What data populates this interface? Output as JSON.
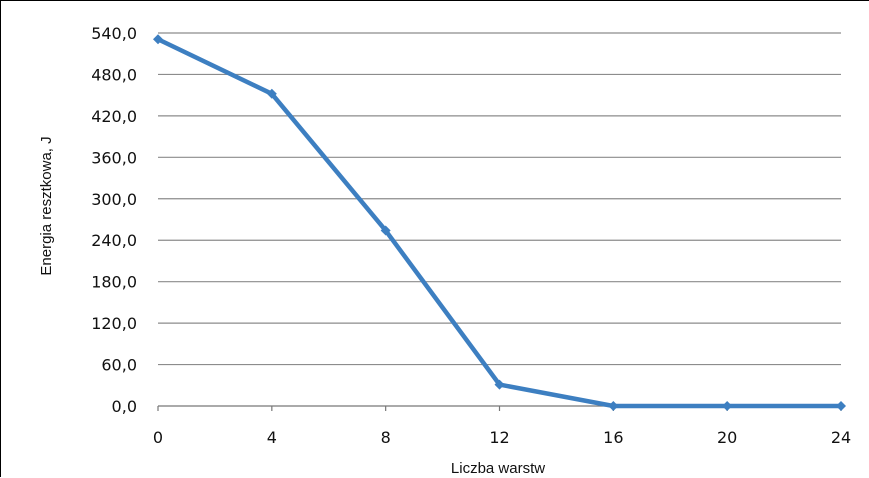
{
  "chart_data": {
    "type": "line",
    "xlabel": "Liczba warstw",
    "ylabel": "Energia resztkowa, J",
    "x": [
      0,
      4,
      8,
      12,
      16,
      20,
      24
    ],
    "x_tick_labels": [
      "0",
      "4",
      "8",
      "12",
      "16",
      "20",
      "24"
    ],
    "y_tick_labels": [
      "0,0",
      "60,0",
      "120,0",
      "180,0",
      "240,0",
      "300,0",
      "360,0",
      "420,0",
      "480,0",
      "540,0"
    ],
    "xlim": [
      0,
      24
    ],
    "ylim": [
      0,
      540
    ],
    "grid": "horizontal",
    "series": [
      {
        "values": [
          531,
          452,
          254,
          31,
          0,
          0,
          0
        ],
        "color": "#3d7fc1",
        "marker": "diamond"
      }
    ]
  }
}
